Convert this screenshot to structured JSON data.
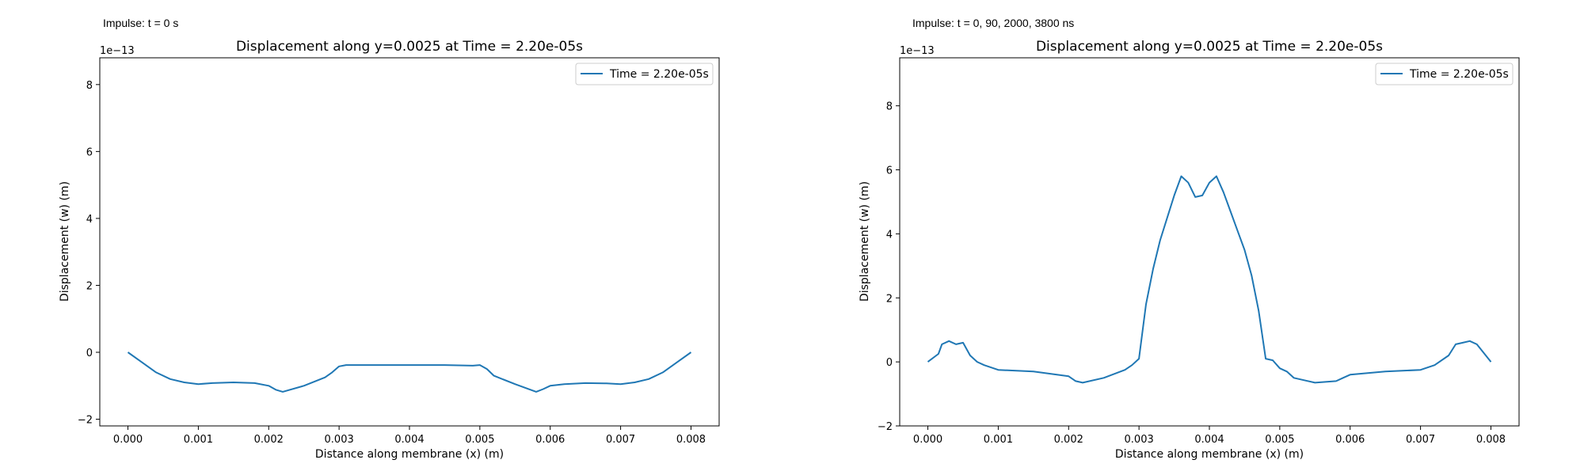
{
  "panels": [
    {
      "annotation": "Impulse: t = 0 s",
      "offset_text": "1e−13"
    },
    {
      "annotation": "Impulse: t = 0, 90, 2000, 3800 ns",
      "offset_text": "1e−13"
    }
  ],
  "colors": {
    "series": "#1f77b4",
    "axes": "#000000",
    "legend_border": "#cccccc"
  },
  "chart_data": [
    {
      "type": "line",
      "title": "Displacement along y=0.0025 at Time = 2.20e-05s",
      "xlabel": "Distance along membrane (x) (m)",
      "ylabel": "Displacement (w) (m)",
      "y_scale_note": "values in units of 1e-13 m",
      "xlim": [
        -0.0004,
        0.0084
      ],
      "ylim": [
        -2.2,
        8.8
      ],
      "xticks": [
        0,
        0.001,
        0.002,
        0.003,
        0.004,
        0.005,
        0.006,
        0.007,
        0.008
      ],
      "xtick_labels": [
        "0.000",
        "0.001",
        "0.002",
        "0.003",
        "0.004",
        "0.005",
        "0.006",
        "0.007",
        "0.008"
      ],
      "yticks": [
        -2,
        0,
        2,
        4,
        6,
        8
      ],
      "ytick_labels": [
        "−2",
        "0",
        "2",
        "4",
        "6",
        "8"
      ],
      "legend_position": "upper right",
      "series": [
        {
          "name": "Time = 2.20e-05s",
          "x": [
            0,
            0.0002,
            0.0004,
            0.0006,
            0.0008,
            0.001,
            0.0012,
            0.0015,
            0.0018,
            0.002,
            0.0021,
            0.0022,
            0.0025,
            0.0028,
            0.0029,
            0.003,
            0.0031,
            0.0035,
            0.004,
            0.0045,
            0.0049,
            0.005,
            0.0051,
            0.0052,
            0.0055,
            0.0058,
            0.0059,
            0.006,
            0.0062,
            0.0065,
            0.0068,
            0.007,
            0.0072,
            0.0074,
            0.0076,
            0.0078,
            0.008
          ],
          "y": [
            0,
            -0.3,
            -0.6,
            -0.8,
            -0.9,
            -0.95,
            -0.92,
            -0.9,
            -0.92,
            -1.0,
            -1.12,
            -1.18,
            -1.0,
            -0.75,
            -0.6,
            -0.42,
            -0.38,
            -0.38,
            -0.38,
            -0.38,
            -0.4,
            -0.38,
            -0.5,
            -0.7,
            -0.95,
            -1.18,
            -1.1,
            -1.0,
            -0.95,
            -0.92,
            -0.93,
            -0.95,
            -0.9,
            -0.8,
            -0.6,
            -0.3,
            0
          ]
        }
      ]
    },
    {
      "type": "line",
      "title": "Displacement along y=0.0025 at Time = 2.20e-05s",
      "xlabel": "Distance along membrane (x) (m)",
      "ylabel": "Displacement (w) (m)",
      "y_scale_note": "values in units of 1e-13 m",
      "xlim": [
        -0.0004,
        0.0084
      ],
      "ylim": [
        -2.0,
        9.5
      ],
      "xticks": [
        0,
        0.001,
        0.002,
        0.003,
        0.004,
        0.005,
        0.006,
        0.007,
        0.008
      ],
      "xtick_labels": [
        "0.000",
        "0.001",
        "0.002",
        "0.003",
        "0.004",
        "0.005",
        "0.006",
        "0.007",
        "0.008"
      ],
      "yticks": [
        -2,
        0,
        2,
        4,
        6,
        8
      ],
      "ytick_labels": [
        "−2",
        "0",
        "2",
        "4",
        "6",
        "8"
      ],
      "legend_position": "upper right",
      "series": [
        {
          "name": "Time = 2.20e-05s",
          "x": [
            0,
            0.00015,
            0.0002,
            0.0003,
            0.0004,
            0.0005,
            0.0006,
            0.0007,
            0.0008,
            0.001,
            0.0015,
            0.002,
            0.0021,
            0.0022,
            0.0025,
            0.0028,
            0.0029,
            0.003,
            0.0031,
            0.0032,
            0.0033,
            0.0034,
            0.0035,
            0.0036,
            0.0037,
            0.0038,
            0.0039,
            0.004,
            0.0041,
            0.0042,
            0.0043,
            0.0044,
            0.0045,
            0.0046,
            0.0047,
            0.0048,
            0.0049,
            0.005,
            0.0051,
            0.0052,
            0.0055,
            0.0058,
            0.0059,
            0.006,
            0.0065,
            0.007,
            0.0072,
            0.0074,
            0.0075,
            0.0076,
            0.0077,
            0.0078,
            0.008
          ],
          "y": [
            0,
            0.25,
            0.55,
            0.65,
            0.55,
            0.6,
            0.2,
            0.0,
            -0.1,
            -0.25,
            -0.3,
            -0.45,
            -0.6,
            -0.65,
            -0.5,
            -0.25,
            -0.1,
            0.1,
            1.8,
            2.9,
            3.8,
            4.5,
            5.2,
            5.8,
            5.6,
            5.15,
            5.2,
            5.6,
            5.8,
            5.3,
            4.7,
            4.1,
            3.5,
            2.7,
            1.6,
            0.1,
            0.05,
            -0.2,
            -0.3,
            -0.5,
            -0.65,
            -0.6,
            -0.5,
            -0.4,
            -0.3,
            -0.25,
            -0.1,
            0.2,
            0.55,
            0.6,
            0.65,
            0.55,
            0
          ]
        }
      ]
    }
  ]
}
